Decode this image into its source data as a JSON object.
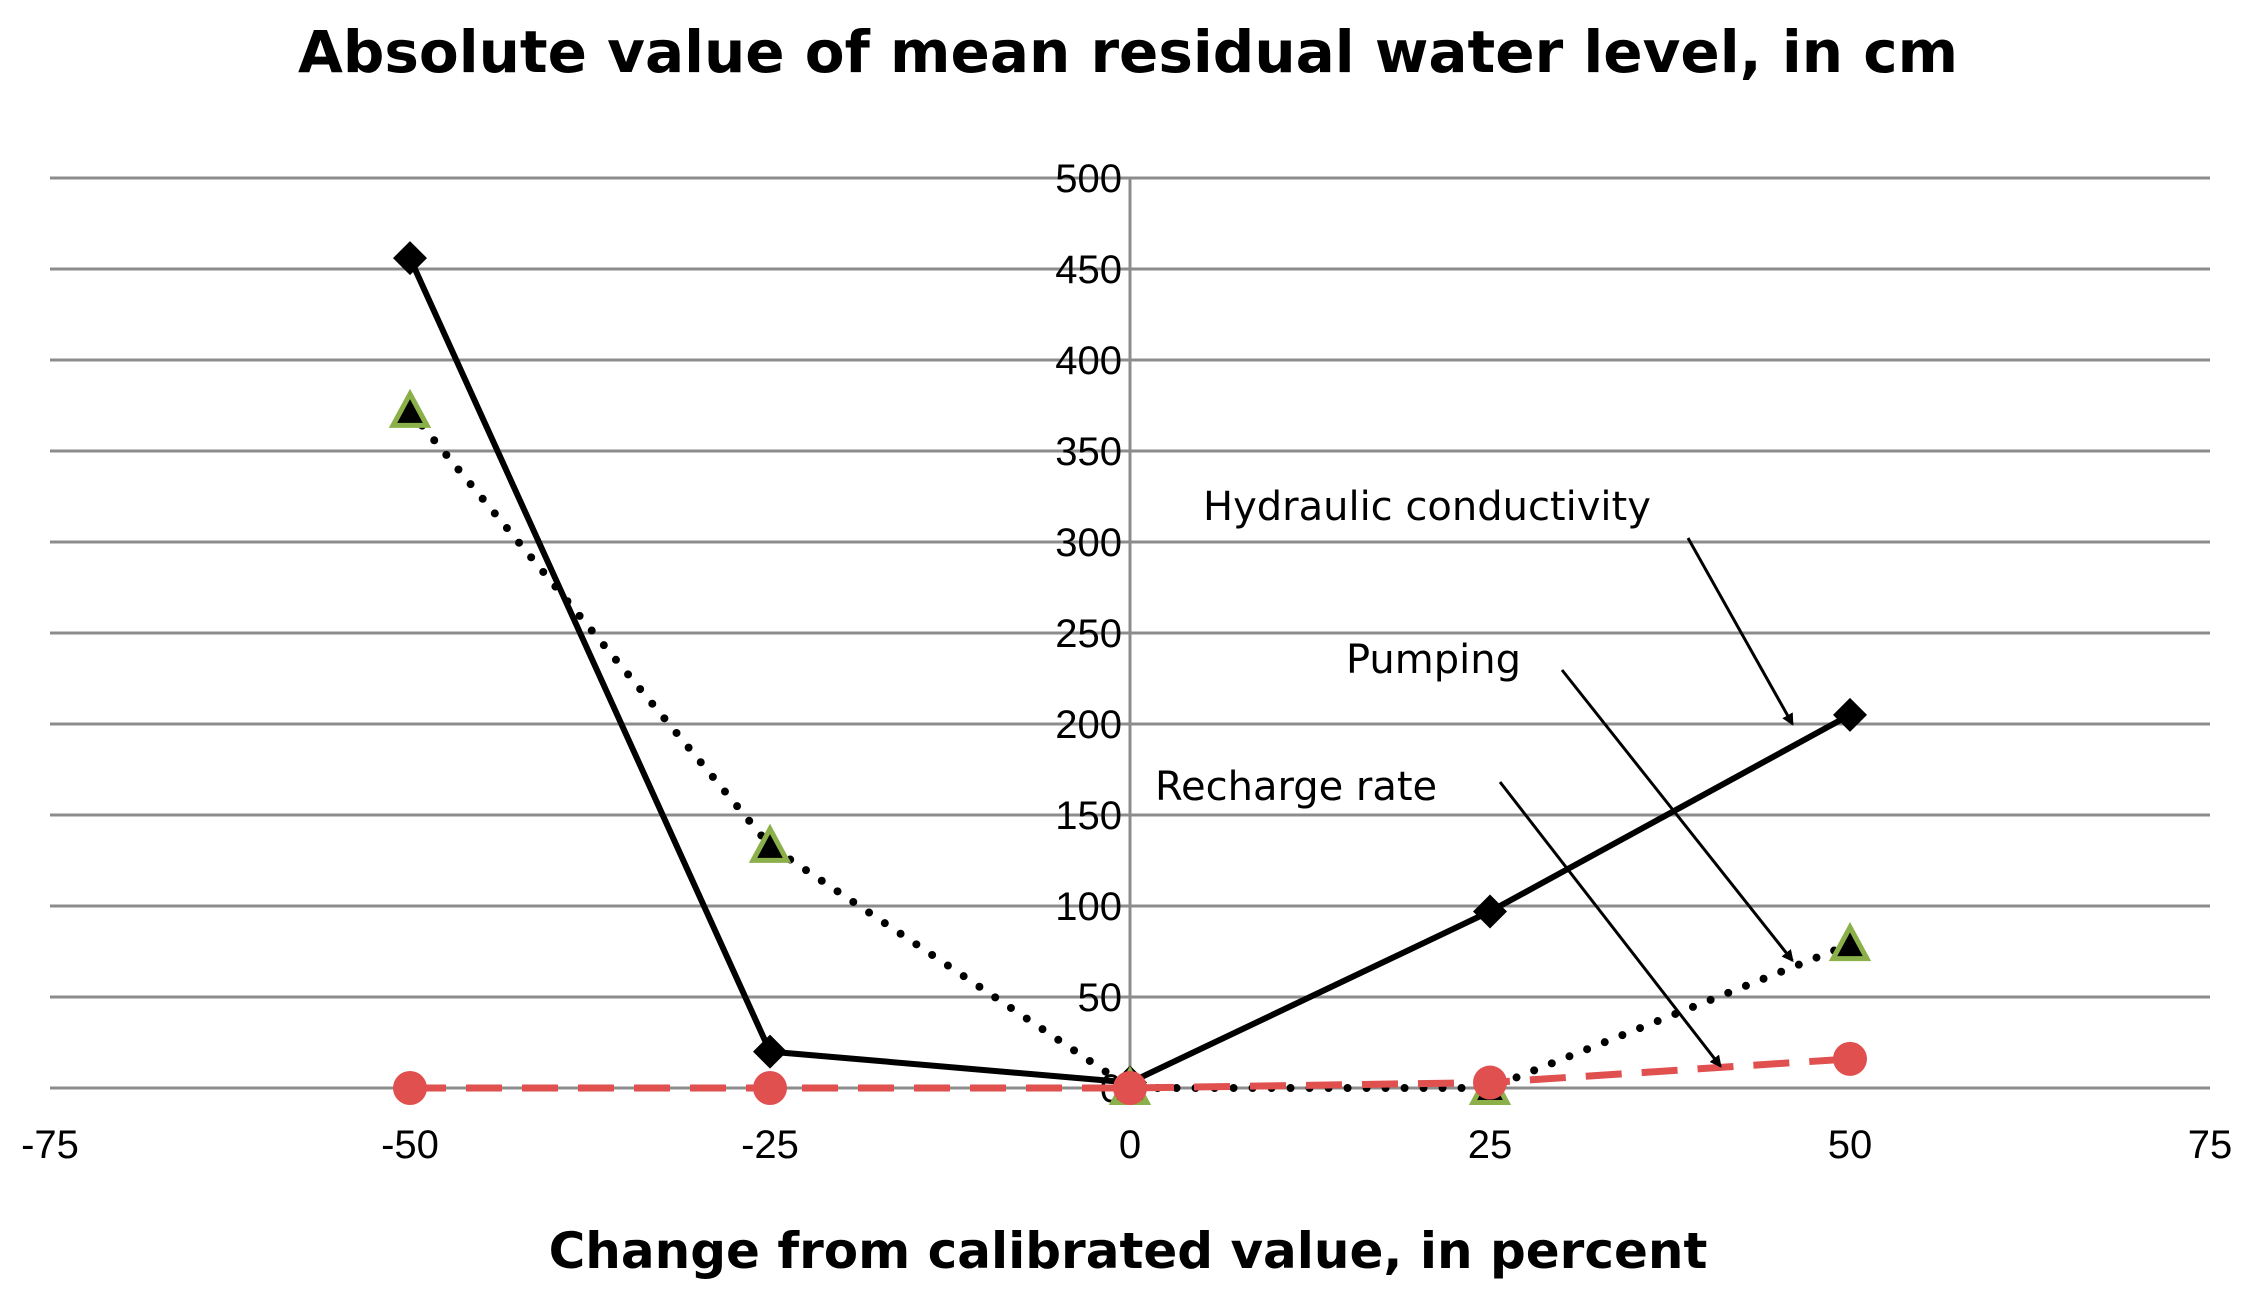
{
  "chart_data": {
    "type": "line",
    "title": "Absolute value of mean residual water level, in cm",
    "xlabel": "Change from calibrated  value, in percent",
    "ylabel": "",
    "xlim": [
      -75,
      75
    ],
    "ylim": [
      0,
      500
    ],
    "xticks": [
      -75,
      -50,
      -25,
      0,
      25,
      50,
      75
    ],
    "yticks": [
      0,
      50,
      100,
      150,
      200,
      250,
      300,
      350,
      400,
      450,
      500
    ],
    "grid": true,
    "legend": "none",
    "series": [
      {
        "key": "hydraulic",
        "x": [
          -50,
          -25,
          0,
          25,
          50
        ],
        "values": [
          456,
          20,
          3,
          97,
          205
        ],
        "color": "#000000",
        "line": "solid",
        "marker": "diamond"
      },
      {
        "key": "pumping",
        "x": [
          -50,
          -25,
          0,
          25,
          50
        ],
        "values": [
          372,
          133,
          0,
          0,
          79
        ],
        "color": "#000000",
        "marker_edge": "#8bb04a",
        "line": "dotted",
        "marker": "triangle"
      },
      {
        "key": "recharge",
        "x": [
          -50,
          -25,
          0,
          25,
          50
        ],
        "values": [
          0,
          0,
          0,
          3,
          16
        ],
        "color": "#e0504f",
        "line": "dashed",
        "marker": "circle"
      }
    ],
    "annotations": [
      {
        "text": "Hydraulic conductivity",
        "series": "hydraulic",
        "arrow_to": [
          46,
          200
        ]
      },
      {
        "text": "Pumping",
        "series": "pumping",
        "arrow_to": [
          46,
          70
        ]
      },
      {
        "text": "Recharge rate",
        "series": "recharge",
        "arrow_to": [
          41,
          12
        ]
      }
    ]
  }
}
